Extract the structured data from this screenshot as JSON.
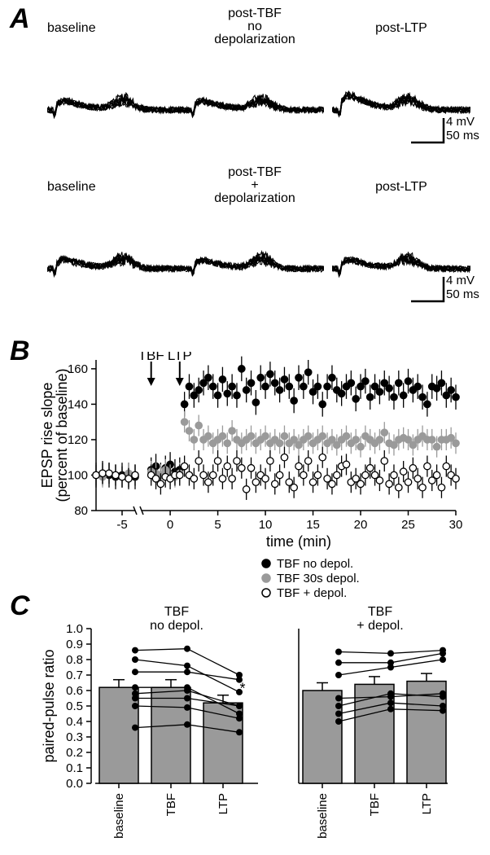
{
  "panelA": {
    "label": "A",
    "label_fontsize": 34,
    "rows": [
      {
        "titles": [
          "baseline",
          "post-TBF\nno\ndepolarization",
          "post-LTP"
        ]
      },
      {
        "titles": [
          "baseline",
          "post-TBF\n+\ndepolarization",
          "post-LTP"
        ]
      }
    ],
    "scalebars": {
      "v_label": "4 mV",
      "h_label": "50 ms"
    },
    "trace_color": "#000000",
    "trace_linewidth": 1.1,
    "n_overlaid_traces": 9
  },
  "panelB": {
    "label": "B",
    "ylabel": "EPSP rise slope\n(percent of baseline)",
    "xlabel": "time (min)",
    "ylim": [
      80,
      165
    ],
    "yticks": [
      80,
      100,
      120,
      140,
      160
    ],
    "xlim": [
      -7,
      30.5
    ],
    "xticks_left": [
      -5
    ],
    "xticks_right": [
      0,
      5,
      10,
      15,
      20,
      25,
      30
    ],
    "axis_break_at": -3.5,
    "arrows": [
      {
        "x": -2,
        "label": "TBF"
      },
      {
        "x": 1,
        "label": "LTP"
      }
    ],
    "series": [
      {
        "name": "TBF no depol.",
        "color_fill": "#000000",
        "color_stroke": "#000000",
        "x": [
          -7,
          -6.5,
          -6,
          -5.5,
          -5,
          -4.5,
          -4,
          -2,
          -1.5,
          -1,
          -0.5,
          0,
          0.5,
          1,
          1.5,
          2,
          2.5,
          3,
          3.5,
          4,
          4.5,
          5,
          5.5,
          6,
          6.5,
          7,
          7.5,
          8,
          8.5,
          9,
          9.5,
          10,
          10.5,
          11,
          11.5,
          12,
          12.5,
          13,
          13.5,
          14,
          14.5,
          15,
          15.5,
          16,
          16.5,
          17,
          17.5,
          18,
          18.5,
          19,
          19.5,
          20,
          20.5,
          21,
          21.5,
          22,
          22.5,
          23,
          23.5,
          24,
          24.5,
          25,
          25.5,
          26,
          26.5,
          27,
          27.5,
          28,
          28.5,
          29,
          29.5,
          30
        ],
        "y": [
          100,
          101,
          100,
          99,
          100,
          100,
          99,
          103,
          105,
          100,
          104,
          106,
          102,
          103,
          140,
          150,
          145,
          148,
          152,
          155,
          150,
          145,
          154,
          146,
          150,
          145,
          160,
          148,
          152,
          141,
          155,
          150,
          157,
          152,
          148,
          154,
          150,
          142,
          155,
          150,
          158,
          147,
          150,
          140,
          150,
          155,
          148,
          146,
          150,
          152,
          143,
          150,
          153,
          144,
          150,
          147,
          152,
          149,
          144,
          152,
          145,
          153,
          148,
          150,
          144,
          140,
          150,
          149,
          152,
          145,
          148,
          144
        ],
        "yerr": 7
      },
      {
        "name": "TBF 30s depol.",
        "color_fill": "#9a9a9a",
        "color_stroke": "#9a9a9a",
        "x": [
          -7,
          -6.5,
          -6,
          -5.5,
          -5,
          -4.5,
          -4,
          -2,
          -1.5,
          -1,
          -0.5,
          0,
          0.5,
          1,
          1.5,
          2,
          2.5,
          3,
          3.5,
          4,
          4.5,
          5,
          5.5,
          6,
          6.5,
          7,
          7.5,
          8,
          8.5,
          9,
          9.5,
          10,
          10.5,
          11,
          11.5,
          12,
          12.5,
          13,
          13.5,
          14,
          14.5,
          15,
          15.5,
          16,
          16.5,
          17,
          17.5,
          18,
          18.5,
          19,
          19.5,
          20,
          20.5,
          21,
          21.5,
          22,
          22.5,
          23,
          23.5,
          24,
          24.5,
          25,
          25.5,
          26,
          26.5,
          27,
          27.5,
          28,
          28.5,
          29,
          29.5,
          30
        ],
        "y": [
          100,
          99,
          101,
          100,
          99,
          101,
          100,
          102,
          101,
          100,
          103,
          100,
          99,
          101,
          130,
          125,
          120,
          128,
          120,
          122,
          118,
          120,
          122,
          118,
          125,
          120,
          118,
          120,
          122,
          118,
          120,
          122,
          118,
          120,
          118,
          122,
          118,
          120,
          117,
          120,
          122,
          118,
          120,
          122,
          118,
          120,
          117,
          120,
          122,
          118,
          120,
          116,
          122,
          120,
          118,
          120,
          124,
          118,
          117,
          120,
          121,
          120,
          117,
          120,
          122,
          120,
          120,
          116,
          120,
          120,
          121,
          118
        ],
        "yerr": 6
      },
      {
        "name": "TBF + depol.",
        "color_fill": "#ffffff",
        "color_stroke": "#000000",
        "x": [
          -7,
          -6.5,
          -6,
          -5.5,
          -5,
          -4.5,
          -4,
          -2,
          -1.5,
          -1,
          -0.5,
          0,
          0.5,
          1,
          1.5,
          2,
          2.5,
          3,
          3.5,
          4,
          4.5,
          5,
          5.5,
          6,
          6.5,
          7,
          7.5,
          8,
          8.5,
          9,
          9.5,
          10,
          10.5,
          11,
          11.5,
          12,
          12.5,
          13,
          13.5,
          14,
          14.5,
          15,
          15.5,
          16,
          16.5,
          17,
          17.5,
          18,
          18.5,
          19,
          19.5,
          20,
          20.5,
          21,
          21.5,
          22,
          22.5,
          23,
          23.5,
          24,
          24.5,
          25,
          25.5,
          26,
          26.5,
          27,
          27.5,
          28,
          28.5,
          29,
          29.5,
          30
        ],
        "y": [
          100,
          101,
          101,
          100,
          99,
          98,
          100,
          100,
          98,
          95,
          99,
          98,
          100,
          100,
          105,
          100,
          98,
          108,
          100,
          96,
          100,
          108,
          98,
          105,
          98,
          108,
          104,
          92,
          104,
          96,
          100,
          98,
          108,
          95,
          100,
          110,
          96,
          93,
          105,
          100,
          108,
          96,
          100,
          110,
          98,
          95,
          100,
          105,
          106,
          96,
          98,
          95,
          100,
          104,
          100,
          97,
          108,
          95,
          100,
          93,
          102,
          96,
          104,
          98,
          93,
          105,
          97,
          100,
          93,
          105,
          100,
          98
        ],
        "yerr": 6
      }
    ],
    "marker_radius": 4.2,
    "background_color": "#ffffff",
    "axis_color": "#000000"
  },
  "panelC": {
    "label": "C",
    "ylabel": "paired-pulse ratio",
    "ylim": [
      0.0,
      1.0
    ],
    "yticks": [
      0.0,
      0.1,
      0.2,
      0.3,
      0.4,
      0.5,
      0.6,
      0.7,
      0.8,
      0.9,
      1.0
    ],
    "ytick_labels": [
      "0.0",
      "0.1",
      "0.2",
      "0.3",
      "0.4",
      "0.5",
      "0.6",
      "0.7",
      "0.8",
      "0.9",
      "1.0"
    ],
    "categories": [
      "baseline",
      "TBF",
      "LTP"
    ],
    "bar_fill": "#9a9a9a",
    "bar_stroke": "#000000",
    "left": {
      "title": "TBF\nno depol.",
      "bar_values": [
        0.62,
        0.62,
        0.52
      ],
      "bar_err": [
        0.05,
        0.05,
        0.05
      ],
      "star_on": 2,
      "points": [
        [
          0.86,
          0.87,
          0.7
        ],
        [
          0.8,
          0.76,
          0.59
        ],
        [
          0.72,
          0.72,
          0.67
        ],
        [
          0.62,
          0.62,
          0.45
        ],
        [
          0.58,
          0.6,
          0.5
        ],
        [
          0.55,
          0.55,
          0.5
        ],
        [
          0.5,
          0.49,
          0.42
        ],
        [
          0.36,
          0.38,
          0.33
        ]
      ]
    },
    "right": {
      "title": "TBF\n+ depol.",
      "bar_values": [
        0.6,
        0.64,
        0.66
      ],
      "bar_err": [
        0.05,
        0.05,
        0.05
      ],
      "points": [
        [
          0.85,
          0.84,
          0.86
        ],
        [
          0.78,
          0.78,
          0.84
        ],
        [
          0.7,
          0.75,
          0.8
        ],
        [
          0.55,
          0.56,
          0.58
        ],
        [
          0.5,
          0.58,
          0.56
        ],
        [
          0.45,
          0.52,
          0.5
        ],
        [
          0.4,
          0.48,
          0.47
        ]
      ]
    },
    "point_radius": 4,
    "axis_color": "#000000"
  }
}
